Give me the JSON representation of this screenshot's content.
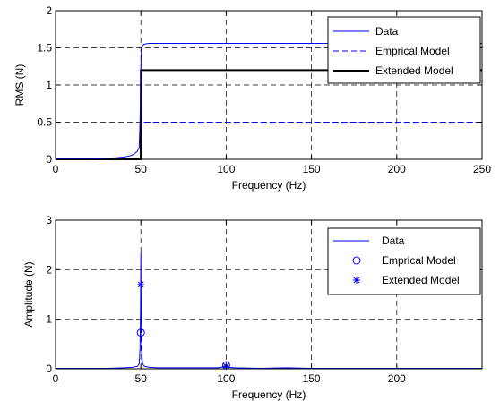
{
  "chart_data": [
    {
      "type": "line",
      "xlabel": "Frequency (Hz)",
      "ylabel": "RMS (N)",
      "xlim": [
        0,
        250
      ],
      "ylim": [
        0,
        2
      ],
      "xticks": [
        0,
        50,
        100,
        150,
        200,
        250
      ],
      "yticks": [
        0,
        0.5,
        1,
        1.5,
        2
      ],
      "grid": true,
      "legend_position": "top-right",
      "series": [
        {
          "name": "Data",
          "color": "#0000ff",
          "style": "solid",
          "x": [
            0,
            20,
            30,
            35,
            40,
            42,
            44,
            46,
            47,
            48,
            49,
            49.5,
            50,
            50.2,
            50.5,
            51,
            52,
            55,
            60,
            100,
            150,
            200,
            250
          ],
          "y": [
            0.01,
            0.01,
            0.015,
            0.02,
            0.03,
            0.04,
            0.05,
            0.07,
            0.09,
            0.11,
            0.16,
            0.5,
            1.2,
            1.4,
            1.5,
            1.53,
            1.55,
            1.56,
            1.56,
            1.56,
            1.56,
            1.56,
            1.56
          ]
        },
        {
          "name": "Emprical Model",
          "color": "#0000ff",
          "style": "dashed",
          "x": [
            0,
            49.9,
            50,
            250
          ],
          "y": [
            0,
            0,
            0.5,
            0.5
          ]
        },
        {
          "name": "Extended Model",
          "color": "#000000",
          "style": "solid",
          "x": [
            0,
            49.9,
            50,
            250
          ],
          "y": [
            0,
            0,
            1.2,
            1.2
          ]
        }
      ]
    },
    {
      "type": "line",
      "xlabel": "Frequency (Hz)",
      "ylabel": "Amplitude (N)",
      "xlim": [
        0,
        250
      ],
      "ylim": [
        0,
        3
      ],
      "xticks": [
        0,
        50,
        100,
        150,
        200
      ],
      "yticks": [
        0,
        1,
        2,
        3
      ],
      "grid": true,
      "legend_position": "top-right",
      "series": [
        {
          "name": "Data",
          "color": "#0000ff",
          "style": "solid",
          "x": [
            0,
            10,
            20,
            30,
            40,
            45,
            48,
            49,
            49.5,
            49.8,
            50,
            50.2,
            50.5,
            51,
            52,
            55,
            60,
            80,
            95,
            99,
            99.7,
            100,
            100.3,
            101,
            105,
            120,
            135,
            150,
            200,
            250
          ],
          "y": [
            0.01,
            0.01,
            0.01,
            0.01,
            0.02,
            0.03,
            0.05,
            0.1,
            0.4,
            1.2,
            2.35,
            1.1,
            0.3,
            0.1,
            0.05,
            0.03,
            0.02,
            0.02,
            0.02,
            0.04,
            0.08,
            0.1,
            0.06,
            0.03,
            0.02,
            0.01,
            0.02,
            0.01,
            0.01,
            0.01
          ]
        },
        {
          "name": "Emprical Model",
          "color": "#0000ff",
          "marker": "circle",
          "x": [
            50,
            100
          ],
          "y": [
            0.73,
            0.07
          ]
        },
        {
          "name": "Extended Model",
          "color": "#0000ff",
          "marker": "asterisk",
          "x": [
            50,
            100
          ],
          "y": [
            1.7,
            0.05
          ]
        }
      ]
    }
  ]
}
